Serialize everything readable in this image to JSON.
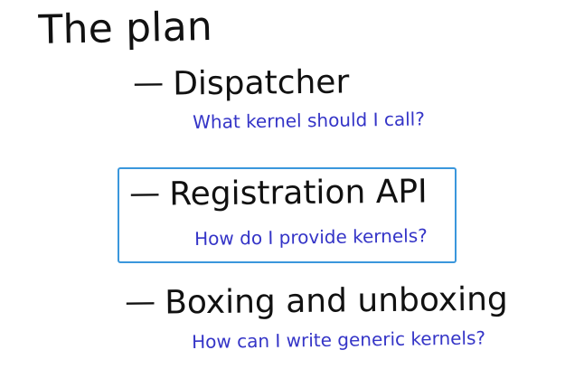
{
  "title": "The plan",
  "items": [
    {
      "dash": "—",
      "label": "Dispatcher",
      "question": "What kernel should I call?"
    },
    {
      "dash": "—",
      "label": "Registration API",
      "question": "How do I provide kernels?"
    },
    {
      "dash": "—",
      "label": "Boxing and unboxing",
      "question": "How can I write generic kernels?"
    }
  ],
  "colors": {
    "text": "#111111",
    "question": "#3434c7",
    "highlight_border": "#3a97dc",
    "background": "#ffffff"
  }
}
